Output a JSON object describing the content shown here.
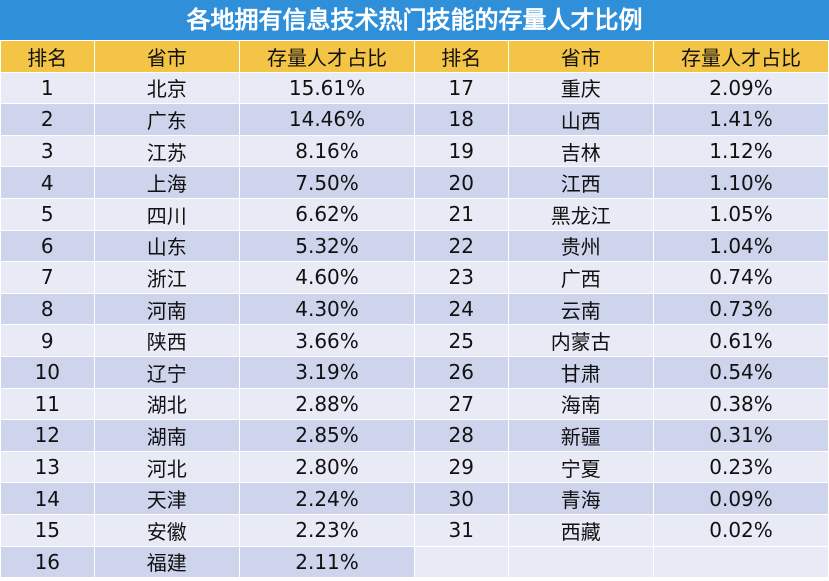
{
  "title": "各地拥有信息技术热门技能的存量人才比例",
  "headers": [
    "排名",
    "省市",
    "存量人才占比"
  ],
  "chart_data": {
    "type": "table",
    "title": "各地拥有信息技术热门技能的存量人才比例",
    "columns": [
      "排名",
      "省市",
      "存量人才占比"
    ],
    "rows": [
      [
        "1",
        "北京",
        "15.61%"
      ],
      [
        "2",
        "广东",
        "14.46%"
      ],
      [
        "3",
        "江苏",
        "8.16%"
      ],
      [
        "4",
        "上海",
        "7.50%"
      ],
      [
        "5",
        "四川",
        "6.62%"
      ],
      [
        "6",
        "山东",
        "5.32%"
      ],
      [
        "7",
        "浙江",
        "4.60%"
      ],
      [
        "8",
        "河南",
        "4.30%"
      ],
      [
        "9",
        "陕西",
        "3.66%"
      ],
      [
        "10",
        "辽宁",
        "3.19%"
      ],
      [
        "11",
        "湖北",
        "2.88%"
      ],
      [
        "12",
        "湖南",
        "2.85%"
      ],
      [
        "13",
        "河北",
        "2.80%"
      ],
      [
        "14",
        "天津",
        "2.24%"
      ],
      [
        "15",
        "安徽",
        "2.23%"
      ],
      [
        "16",
        "福建",
        "2.11%"
      ],
      [
        "17",
        "重庆",
        "2.09%"
      ],
      [
        "18",
        "山西",
        "1.41%"
      ],
      [
        "19",
        "吉林",
        "1.12%"
      ],
      [
        "20",
        "江西",
        "1.10%"
      ],
      [
        "21",
        "黑龙江",
        "1.05%"
      ],
      [
        "22",
        "贵州",
        "1.04%"
      ],
      [
        "23",
        "广西",
        "0.74%"
      ],
      [
        "24",
        "云南",
        "0.73%"
      ],
      [
        "25",
        "内蒙古",
        "0.61%"
      ],
      [
        "26",
        "甘肃",
        "0.54%"
      ],
      [
        "27",
        "海南",
        "0.38%"
      ],
      [
        "28",
        "新疆",
        "0.31%"
      ],
      [
        "29",
        "宁夏",
        "0.23%"
      ],
      [
        "30",
        "青海",
        "0.09%"
      ],
      [
        "31",
        "西藏",
        "0.02%"
      ]
    ]
  }
}
